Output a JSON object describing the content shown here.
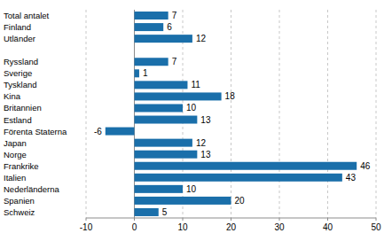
{
  "chart_data": {
    "type": "bar",
    "orientation": "horizontal",
    "categories": [
      "Total antalet",
      "Finland",
      "Utländer",
      null,
      "Ryssland",
      "Sverige",
      "Tyskland",
      "Kina",
      "Britannien",
      "Estland",
      "Förenta Staterna",
      "Japan",
      "Norge",
      "Frankrike",
      "Italien",
      "Nederländerna",
      "Spanien",
      "Schweiz"
    ],
    "values": [
      7,
      6,
      12,
      null,
      7,
      1,
      11,
      18,
      10,
      13,
      -6,
      12,
      13,
      46,
      43,
      10,
      20,
      5
    ],
    "color": "#1a6faa",
    "xlim": [
      -10,
      50
    ],
    "xticks": [
      -10,
      0,
      10,
      20,
      30,
      40,
      50
    ],
    "grid": true,
    "data_labels": true
  }
}
